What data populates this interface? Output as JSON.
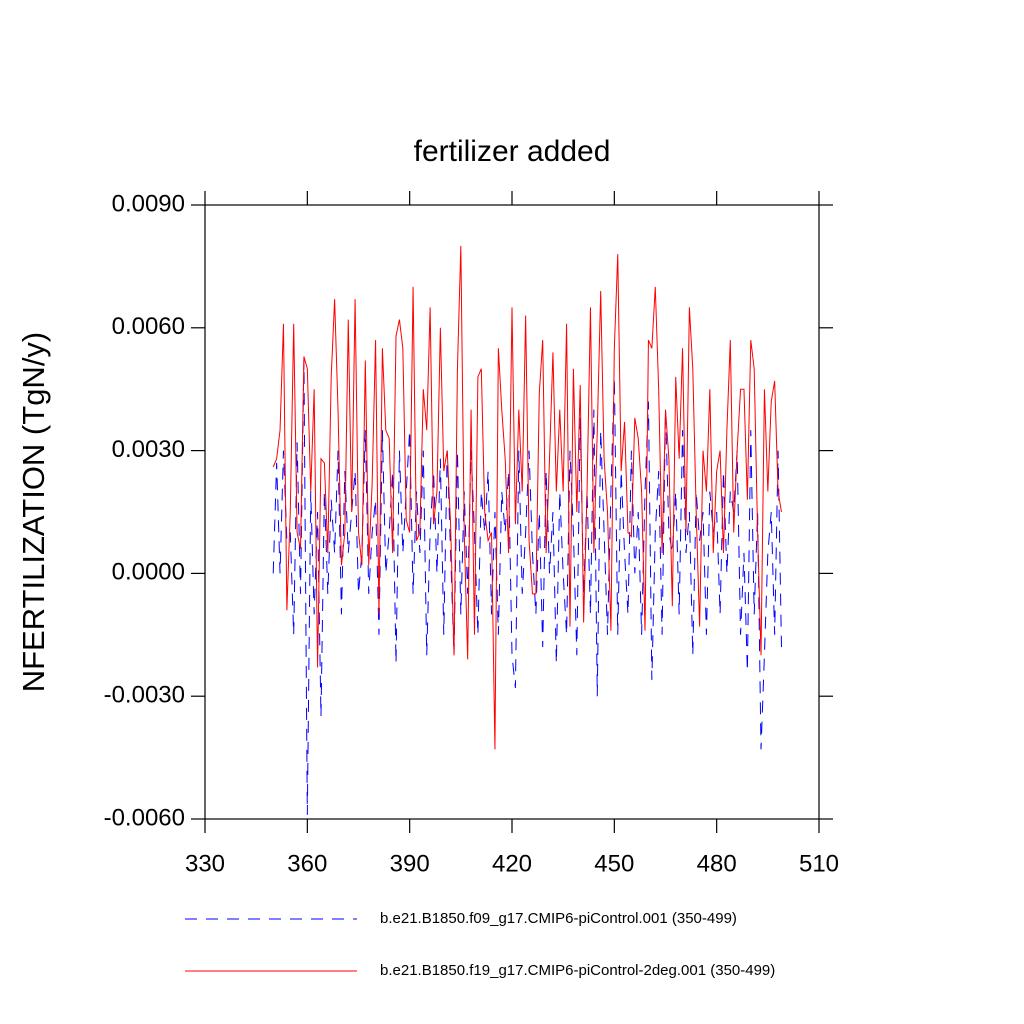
{
  "chart_data": {
    "type": "line",
    "title": "fertilizer added",
    "ylabel": "NFERTILIZATION  (TgN/y)",
    "x": [
      350,
      351,
      352,
      353,
      354,
      355,
      356,
      357,
      358,
      359,
      360,
      361,
      362,
      363,
      364,
      365,
      366,
      367,
      368,
      369,
      370,
      371,
      372,
      373,
      374,
      375,
      376,
      377,
      378,
      379,
      380,
      381,
      382,
      383,
      384,
      385,
      386,
      387,
      388,
      389,
      390,
      391,
      392,
      393,
      394,
      395,
      396,
      397,
      398,
      399,
      400,
      401,
      402,
      403,
      404,
      405,
      406,
      407,
      408,
      409,
      410,
      411,
      412,
      413,
      414,
      415,
      416,
      417,
      418,
      419,
      420,
      421,
      422,
      423,
      424,
      425,
      426,
      427,
      428,
      429,
      430,
      431,
      432,
      433,
      434,
      435,
      436,
      437,
      438,
      439,
      440,
      441,
      442,
      443,
      444,
      445,
      446,
      447,
      448,
      449,
      450,
      451,
      452,
      453,
      454,
      455,
      456,
      457,
      458,
      459,
      460,
      461,
      462,
      463,
      464,
      465,
      466,
      467,
      468,
      469,
      470,
      471,
      472,
      473,
      474,
      475,
      476,
      477,
      478,
      479,
      480,
      481,
      482,
      483,
      484,
      485,
      486,
      487,
      488,
      489,
      490,
      491,
      492,
      493,
      494,
      495,
      496,
      497,
      498,
      499
    ],
    "series": [
      {
        "name": "b.e21.B1850.f09_g17.CMIP6-piControl.001 (350-499)",
        "color": "#0000ff",
        "dash": true,
        "values": [
          0.0,
          0.0027,
          0.0,
          0.003,
          0.0008,
          0.001,
          -0.0015,
          0.0032,
          -0.0005,
          0.0052,
          -0.0059,
          0.002,
          -0.001,
          0.0015,
          -0.0035,
          0.002,
          -0.0005,
          0.0018,
          0.0005,
          0.003,
          -0.001,
          0.0025,
          0.0005,
          0.0015,
          0.0025,
          -0.0005,
          0.0005,
          0.0035,
          -0.0005,
          0.001,
          0.0018,
          -0.0015,
          0.0035,
          0.0,
          0.001,
          0.0025,
          -0.0022,
          0.003,
          0.0005,
          0.002,
          0.0035,
          -0.0005,
          0.002,
          0.0005,
          0.003,
          -0.002,
          0.001,
          0.0025,
          0.0,
          0.0028,
          -0.0015,
          0.003,
          0.0005,
          -0.002,
          0.003,
          -0.001,
          0.002,
          -0.0005,
          0.003,
          0.001,
          -0.0015,
          0.002,
          0.001,
          0.0025,
          -0.001,
          0.0015,
          -0.0015,
          0.002,
          0.001,
          0.0025,
          -0.002,
          -0.0028,
          0.003,
          -0.0005,
          0.001,
          0.003,
          0.0005,
          -0.001,
          0.0015,
          -0.0018,
          0.0025,
          0.0,
          0.0015,
          -0.0022,
          0.002,
          0.0,
          -0.0015,
          0.003,
          0.001,
          -0.002,
          0.0038,
          -0.0005,
          0.002,
          -0.001,
          0.004,
          -0.003,
          0.0035,
          0.001,
          -0.0015,
          0.002,
          0.0048,
          -0.0015,
          0.0025,
          0.0005,
          -0.001,
          0.003,
          0.0,
          0.0015,
          -0.0015,
          0.002,
          0.0042,
          -0.0026,
          0.001,
          0.0025,
          -0.0015,
          0.004,
          0.001,
          0.0005,
          0.002,
          -0.001,
          0.0035,
          0.0005,
          0.0015,
          -0.002,
          0.002,
          0.0008,
          0.0015,
          -0.0015,
          0.002,
          0.001,
          0.0015,
          -0.001,
          0.0025,
          0.0,
          0.002,
          0.0015,
          0.003,
          -0.0015,
          0.0005,
          -0.0024,
          0.0035,
          -0.001,
          0.0015,
          -0.0043,
          -0.002,
          0.0005,
          0.0015,
          -0.0015,
          0.003,
          -0.0018
        ]
      },
      {
        "name": "b.e21.B1850.f19_g17.CMIP6-piControl-2deg.001 (350-499)",
        "color": "#ff0000",
        "dash": false,
        "values": [
          0.0026,
          0.0028,
          0.0035,
          0.0061,
          -0.0009,
          0.0015,
          0.0061,
          0.001,
          0.0006,
          0.0053,
          0.005,
          0.002,
          0.0045,
          -0.0023,
          0.0028,
          0.0027,
          0.0005,
          0.0048,
          0.0067,
          0.004,
          0.0002,
          0.001,
          0.0062,
          0.0015,
          0.0067,
          0.001,
          0.0002,
          0.0052,
          0.0002,
          0.0022,
          0.0057,
          -0.001,
          0.0055,
          0.0035,
          0.0033,
          0.0005,
          0.0058,
          0.0062,
          0.0055,
          0.0013,
          0.001,
          0.007,
          0.0008,
          0.001,
          0.0045,
          0.0035,
          0.0065,
          0.0012,
          0.002,
          0.006,
          0.0025,
          0.003,
          0.0012,
          -0.002,
          0.005,
          0.008,
          0.001,
          -0.0021,
          0.004,
          -0.0015,
          0.0048,
          0.005,
          0.0015,
          0.0008,
          0.001,
          -0.0043,
          0.0055,
          0.004,
          0.0028,
          0.0005,
          0.0065,
          0.0012,
          0.004,
          0.002,
          0.0063,
          0.0008,
          -0.0005,
          -0.0005,
          0.0044,
          0.0057,
          0.0005,
          0.0028,
          0.0054,
          0.002,
          0.004,
          0.002,
          0.0061,
          -0.0013,
          0.005,
          0.0015,
          0.0046,
          -0.0012,
          0.002,
          0.0065,
          0.0005,
          0.0035,
          0.0069,
          0.0028,
          0.0015,
          -0.0014,
          0.0055,
          0.0078,
          0.0025,
          0.0037,
          0.001,
          0.0009,
          0.0038,
          0.0033,
          0.002,
          -0.0014,
          0.0057,
          0.0055,
          0.007,
          0.0045,
          0.0005,
          0.004,
          0.0028,
          -0.0008,
          0.0048,
          0.0028,
          0.0055,
          0.001,
          0.0065,
          0.005,
          0.0015,
          -0.0013,
          0.003,
          0.002,
          0.0045,
          0.0005,
          0.0025,
          0.003,
          0.0005,
          0.0035,
          0.0057,
          0.001,
          0.003,
          0.0045,
          0.0045,
          0.0018,
          0.0057,
          0.005,
          0.001,
          -0.002,
          0.0045,
          0.002,
          0.0042,
          0.0047,
          0.002,
          0.0015
        ]
      }
    ],
    "xlim": [
      330,
      510
    ],
    "xticks": [
      330,
      360,
      390,
      420,
      450,
      480,
      510
    ],
    "ylim": [
      -0.006,
      0.009
    ],
    "yticks": [
      {
        "value": -0.006,
        "label": "-0.0060"
      },
      {
        "value": -0.003,
        "label": "-0.0030"
      },
      {
        "value": 0,
        "label": "0.0000"
      },
      {
        "value": 0.003,
        "label": "0.0030"
      },
      {
        "value": 0.006,
        "label": "0.0060"
      },
      {
        "value": 0.009,
        "label": "0.0090"
      }
    ]
  }
}
